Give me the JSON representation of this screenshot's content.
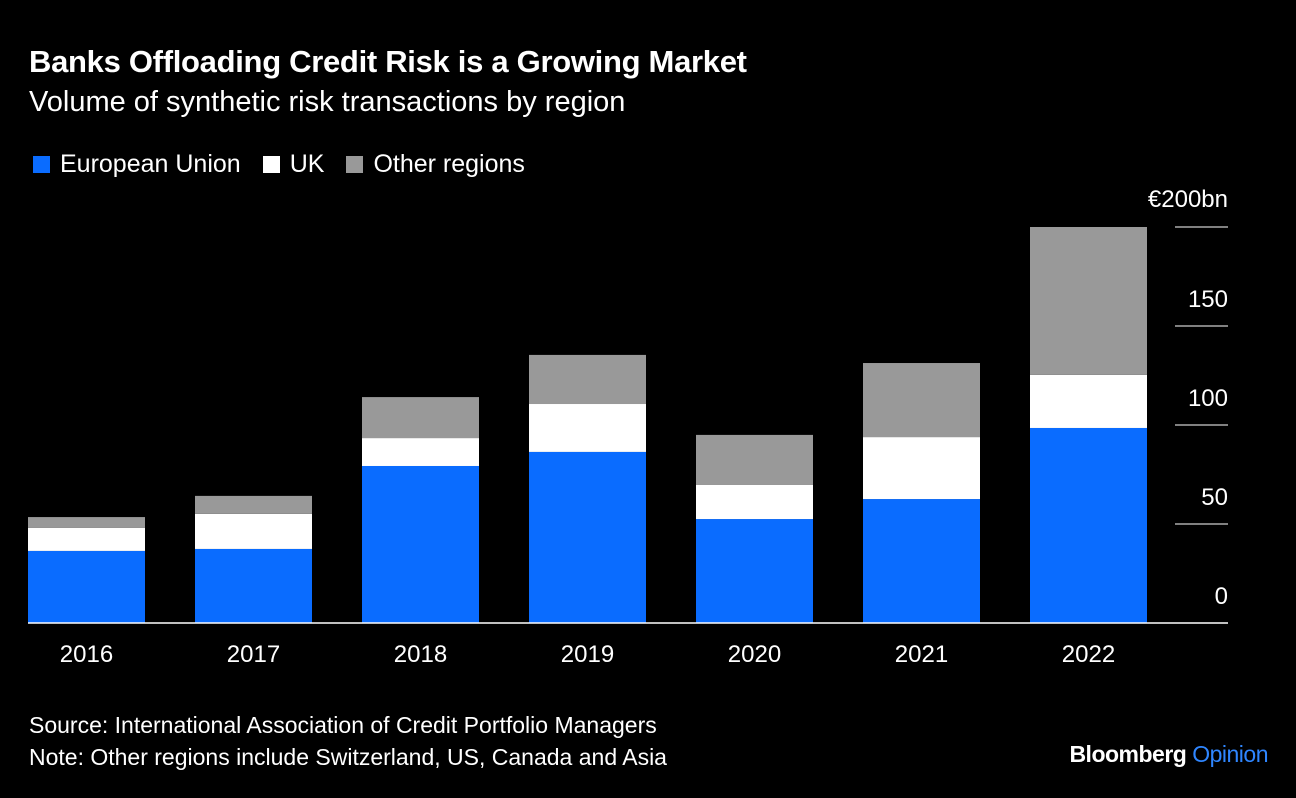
{
  "chart_data": {
    "type": "bar",
    "stacked": true,
    "title": "Banks Offloading Credit Risk is a Growing Market",
    "subtitle": "Volume of synthetic risk transactions by region",
    "categories": [
      "2016",
      "2017",
      "2018",
      "2019",
      "2020",
      "2021",
      "2022"
    ],
    "series": [
      {
        "name": "European Union",
        "color": "#0a6cff",
        "values": [
          36.4,
          37.4,
          79.3,
          86.4,
          52.5,
          62.6,
          98.5
        ]
      },
      {
        "name": "UK",
        "color": "#ffffff",
        "values": [
          11.6,
          17.7,
          14.1,
          24.2,
          17.2,
          31.3,
          26.8
        ]
      },
      {
        "name": "Other regions",
        "color": "#999999",
        "values": [
          5.5,
          9.1,
          20.7,
          24.8,
          25.3,
          37.4,
          74.7
        ]
      }
    ],
    "yticks": [
      0,
      50,
      100,
      150,
      200
    ],
    "ytick_labels": [
      "0",
      "50",
      "100",
      "150",
      "€200bn"
    ],
    "ylim": [
      0,
      200
    ],
    "xlabel": "",
    "ylabel": "",
    "legend_position": "top-left",
    "grid": true
  },
  "footer": {
    "source": "Source: International Association of Credit Portfolio Managers",
    "note": "Note: Other regions include Switzerland, US, Canada and Asia"
  },
  "logo": {
    "brand": "Bloomberg",
    "product": "Opinion",
    "accent": "#2f86ff"
  }
}
